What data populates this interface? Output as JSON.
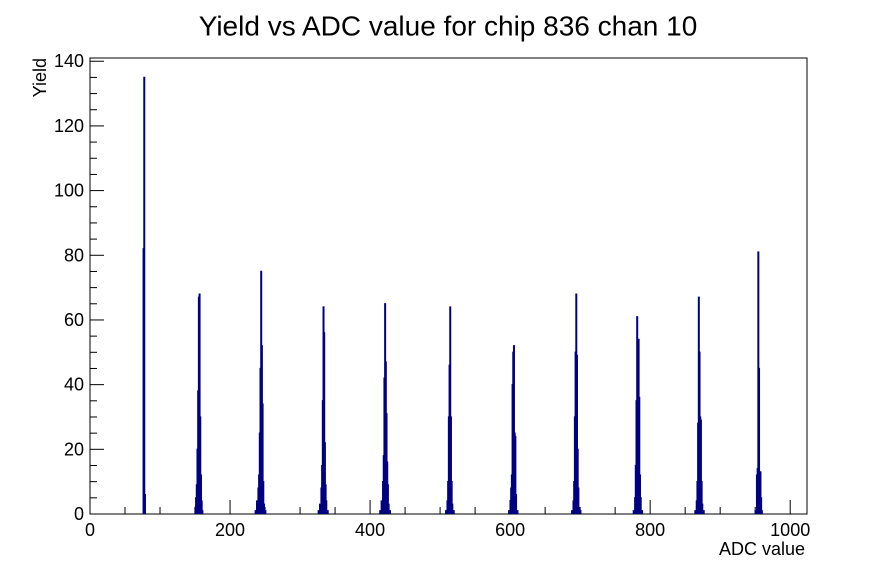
{
  "chart_data": {
    "type": "histogram",
    "title": "Yield vs ADC value for chip 836 chan 10",
    "xlabel": "ADC value",
    "ylabel": "Yield",
    "xlim": [
      0,
      1024
    ],
    "ylim": [
      0,
      141
    ],
    "x_ticks": [
      0,
      200,
      400,
      600,
      800,
      1000
    ],
    "y_ticks": [
      0,
      20,
      40,
      60,
      80,
      100,
      120,
      140
    ],
    "grid": false,
    "line_color": "#000080",
    "series": [
      {
        "points": [
          {
            "x": 75,
            "y": 0
          },
          {
            "x": 76,
            "y": 82
          },
          {
            "x": 77,
            "y": 135
          },
          {
            "x": 78,
            "y": 6
          },
          {
            "x": 79,
            "y": 0
          },
          {
            "x": 150,
            "y": 2
          },
          {
            "x": 151,
            "y": 5
          },
          {
            "x": 152,
            "y": 9
          },
          {
            "x": 153,
            "y": 20
          },
          {
            "x": 154,
            "y": 38
          },
          {
            "x": 155,
            "y": 67
          },
          {
            "x": 156,
            "y": 68
          },
          {
            "x": 157,
            "y": 30
          },
          {
            "x": 158,
            "y": 12
          },
          {
            "x": 159,
            "y": 4
          },
          {
            "x": 160,
            "y": 1
          },
          {
            "x": 236,
            "y": 1
          },
          {
            "x": 238,
            "y": 4
          },
          {
            "x": 240,
            "y": 8
          },
          {
            "x": 241,
            "y": 12
          },
          {
            "x": 242,
            "y": 25
          },
          {
            "x": 243,
            "y": 45
          },
          {
            "x": 244,
            "y": 75
          },
          {
            "x": 245,
            "y": 52
          },
          {
            "x": 246,
            "y": 34
          },
          {
            "x": 247,
            "y": 10
          },
          {
            "x": 248,
            "y": 3
          },
          {
            "x": 250,
            "y": 1
          },
          {
            "x": 326,
            "y": 1
          },
          {
            "x": 328,
            "y": 3
          },
          {
            "x": 330,
            "y": 8
          },
          {
            "x": 331,
            "y": 15
          },
          {
            "x": 332,
            "y": 35
          },
          {
            "x": 333,
            "y": 64
          },
          {
            "x": 334,
            "y": 56
          },
          {
            "x": 335,
            "y": 22
          },
          {
            "x": 336,
            "y": 9
          },
          {
            "x": 337,
            "y": 4
          },
          {
            "x": 339,
            "y": 1
          },
          {
            "x": 414,
            "y": 1
          },
          {
            "x": 416,
            "y": 4
          },
          {
            "x": 418,
            "y": 10
          },
          {
            "x": 419,
            "y": 18
          },
          {
            "x": 420,
            "y": 42
          },
          {
            "x": 421,
            "y": 65
          },
          {
            "x": 422,
            "y": 47
          },
          {
            "x": 423,
            "y": 31
          },
          {
            "x": 424,
            "y": 16
          },
          {
            "x": 425,
            "y": 9
          },
          {
            "x": 426,
            "y": 3
          },
          {
            "x": 428,
            "y": 1
          },
          {
            "x": 508,
            "y": 1
          },
          {
            "x": 510,
            "y": 4
          },
          {
            "x": 511,
            "y": 10
          },
          {
            "x": 512,
            "y": 30
          },
          {
            "x": 513,
            "y": 46
          },
          {
            "x": 514,
            "y": 64
          },
          {
            "x": 515,
            "y": 30
          },
          {
            "x": 516,
            "y": 10
          },
          {
            "x": 517,
            "y": 3
          },
          {
            "x": 519,
            "y": 1
          },
          {
            "x": 598,
            "y": 1
          },
          {
            "x": 600,
            "y": 4
          },
          {
            "x": 601,
            "y": 8
          },
          {
            "x": 602,
            "y": 12
          },
          {
            "x": 603,
            "y": 40
          },
          {
            "x": 604,
            "y": 50
          },
          {
            "x": 605,
            "y": 52
          },
          {
            "x": 606,
            "y": 25
          },
          {
            "x": 607,
            "y": 24
          },
          {
            "x": 608,
            "y": 6
          },
          {
            "x": 610,
            "y": 1
          },
          {
            "x": 688,
            "y": 1
          },
          {
            "x": 690,
            "y": 4
          },
          {
            "x": 691,
            "y": 10
          },
          {
            "x": 692,
            "y": 30
          },
          {
            "x": 693,
            "y": 50
          },
          {
            "x": 694,
            "y": 68
          },
          {
            "x": 695,
            "y": 49
          },
          {
            "x": 696,
            "y": 20
          },
          {
            "x": 697,
            "y": 8
          },
          {
            "x": 698,
            "y": 2
          },
          {
            "x": 700,
            "y": 1
          },
          {
            "x": 776,
            "y": 1
          },
          {
            "x": 778,
            "y": 5
          },
          {
            "x": 779,
            "y": 15
          },
          {
            "x": 780,
            "y": 35
          },
          {
            "x": 781,
            "y": 61
          },
          {
            "x": 782,
            "y": 38
          },
          {
            "x": 783,
            "y": 54
          },
          {
            "x": 784,
            "y": 36
          },
          {
            "x": 785,
            "y": 12
          },
          {
            "x": 786,
            "y": 5
          },
          {
            "x": 788,
            "y": 1
          },
          {
            "x": 864,
            "y": 1
          },
          {
            "x": 866,
            "y": 4
          },
          {
            "x": 867,
            "y": 10
          },
          {
            "x": 868,
            "y": 28
          },
          {
            "x": 869,
            "y": 67
          },
          {
            "x": 870,
            "y": 50
          },
          {
            "x": 871,
            "y": 30
          },
          {
            "x": 872,
            "y": 29
          },
          {
            "x": 873,
            "y": 10
          },
          {
            "x": 874,
            "y": 3
          },
          {
            "x": 876,
            "y": 1
          },
          {
            "x": 950,
            "y": 1
          },
          {
            "x": 952,
            "y": 12
          },
          {
            "x": 953,
            "y": 14
          },
          {
            "x": 954,
            "y": 81
          },
          {
            "x": 955,
            "y": 45
          },
          {
            "x": 956,
            "y": 7
          },
          {
            "x": 957,
            "y": 13
          },
          {
            "x": 958,
            "y": 5
          },
          {
            "x": 959,
            "y": 1
          }
        ]
      }
    ]
  }
}
